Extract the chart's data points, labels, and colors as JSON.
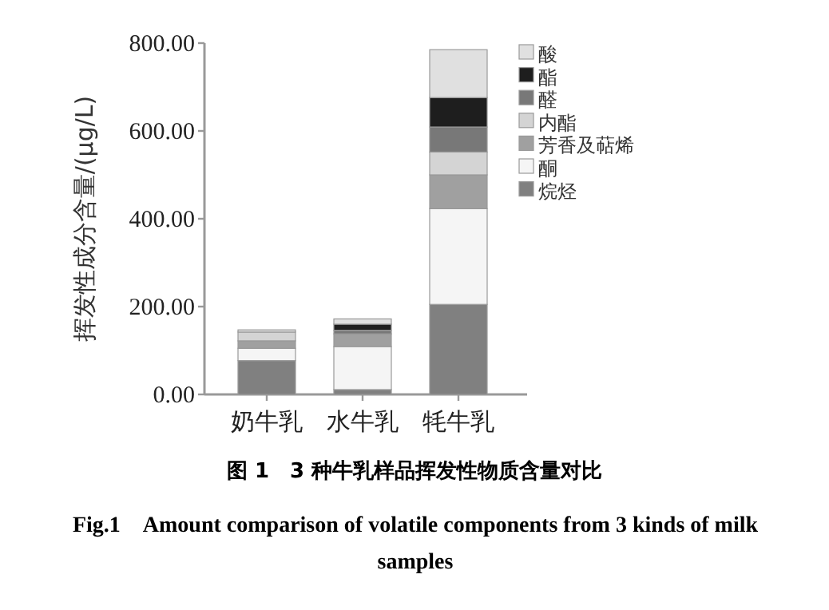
{
  "chart_data": {
    "type": "bar",
    "stacked": true,
    "ylabel": "挥发性成分含量/(μg/L)",
    "categories": [
      "奶牛乳",
      "水牛乳",
      "牦牛乳"
    ],
    "series": [
      {
        "name": "烷烃",
        "color": "#808080",
        "values": [
          77,
          11,
          205
        ]
      },
      {
        "name": "酮",
        "color": "#f5f5f5",
        "values": [
          28,
          98,
          218
        ]
      },
      {
        "name": "芳香及萜烯",
        "color": "#a0a0a0",
        "values": [
          17,
          29,
          77
        ]
      },
      {
        "name": "内酯",
        "color": "#d4d4d4",
        "values": [
          20,
          0,
          52
        ]
      },
      {
        "name": "醛",
        "color": "#787878",
        "values": [
          0,
          8,
          57
        ]
      },
      {
        "name": "酯",
        "color": "#1e1e1e",
        "values": [
          0,
          14,
          67
        ]
      },
      {
        "name": "酸",
        "color": "#e0e0e0",
        "values": [
          5,
          12,
          109
        ]
      }
    ],
    "ylim": [
      0,
      800
    ],
    "yticks": [
      {
        "value": 0,
        "label": "0.00"
      },
      {
        "value": 200,
        "label": "200.00"
      },
      {
        "value": 400,
        "label": "400.00"
      },
      {
        "value": 600,
        "label": "600.00"
      },
      {
        "value": 800,
        "label": "800.00"
      }
    ],
    "legend": "top right",
    "annotations": [
      "图 1　3 种牛乳样品挥发性物质含量对比",
      "Fig.1　Amount comparison of volatile components from 3 kinds of milk samples"
    ]
  }
}
